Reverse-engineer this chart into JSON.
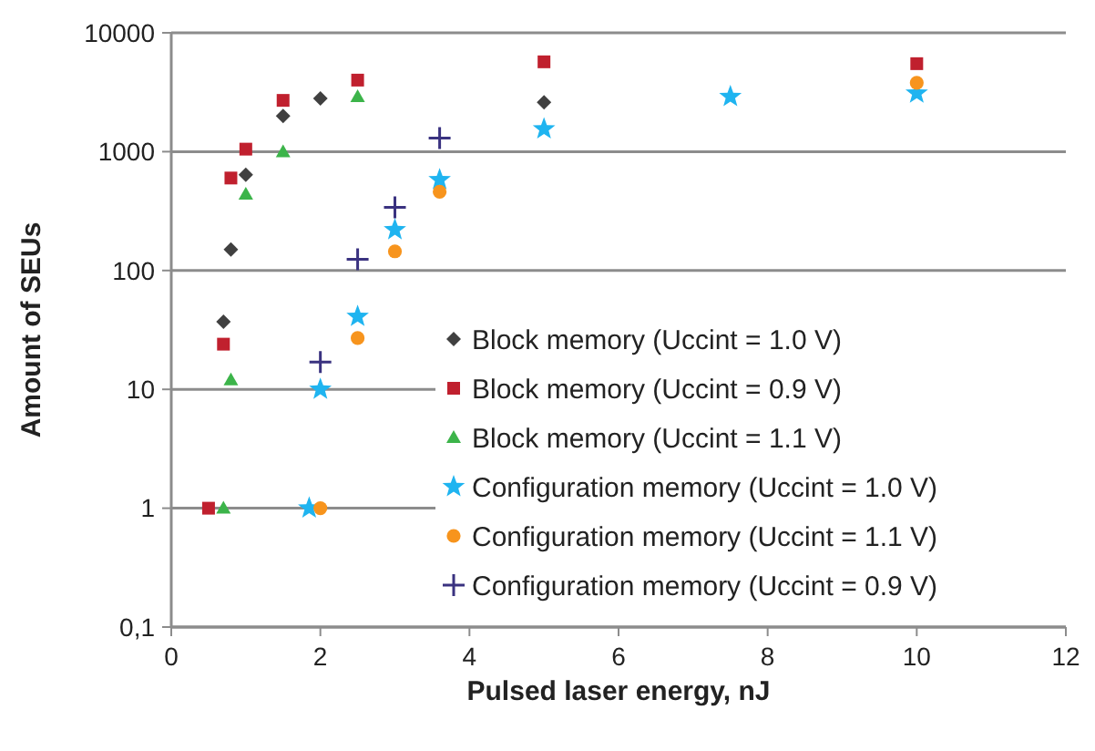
{
  "chart_data": {
    "type": "scatter",
    "xlabel": "Pulsed laser energy, nJ",
    "ylabel": "Amount of SEUs",
    "log": "y",
    "grid": "y",
    "legend": "bottom right",
    "xlim": [
      0,
      12
    ],
    "xticks": [
      0,
      2,
      4,
      6,
      8,
      10,
      12
    ],
    "ylim": [
      0.1,
      10000
    ],
    "yticks": [
      {
        "value": 0.1,
        "label": "0,1"
      },
      1,
      10,
      100,
      1000,
      10000
    ],
    "series": [
      {
        "name": "Block memory (Uccint = 1.0 V)",
        "color": "#404040",
        "marker": "diamond",
        "x": [
          0.7,
          0.8,
          1.0,
          1.5,
          2.0,
          5.0
        ],
        "values": [
          37,
          150,
          640,
          2000,
          2800,
          2600
        ]
      },
      {
        "name": "Block memory (Uccint = 0.9 V)",
        "color": "#c0202e",
        "marker": "square",
        "x": [
          0.5,
          0.7,
          0.8,
          1.0,
          1.5,
          2.5,
          5.0,
          10.0
        ],
        "values": [
          1,
          24,
          600,
          1050,
          2700,
          4000,
          5700,
          5500
        ]
      },
      {
        "name": "Block memory (Uccint = 1.1 V)",
        "color": "#3cb44a",
        "marker": "triangle",
        "x": [
          0.7,
          0.8,
          1.0,
          1.5,
          2.5
        ],
        "values": [
          1,
          12,
          440,
          1000,
          2900
        ]
      },
      {
        "name": "Configuration memory (Uccint = 1.0 V)",
        "color": "#1fb4f0",
        "marker": "star",
        "x": [
          1.85,
          2.0,
          2.5,
          3.0,
          3.6,
          5.0,
          7.5,
          10.0
        ],
        "values": [
          1,
          10,
          41,
          220,
          580,
          1550,
          2900,
          3100
        ]
      },
      {
        "name": "Configuration memory (Uccint = 1.1 V)",
        "color": "#f7941d",
        "marker": "circle",
        "x": [
          2.0,
          2.5,
          3.0,
          3.6,
          10.0
        ],
        "values": [
          1,
          27,
          145,
          460,
          3800
        ]
      },
      {
        "name": "Configuration memory (Uccint = 0.9 V)",
        "color": "#3a3280",
        "marker": "cross",
        "x": [
          2.0,
          2.5,
          3.0,
          3.6
        ],
        "values": [
          17,
          124,
          340,
          1300
        ]
      }
    ]
  }
}
